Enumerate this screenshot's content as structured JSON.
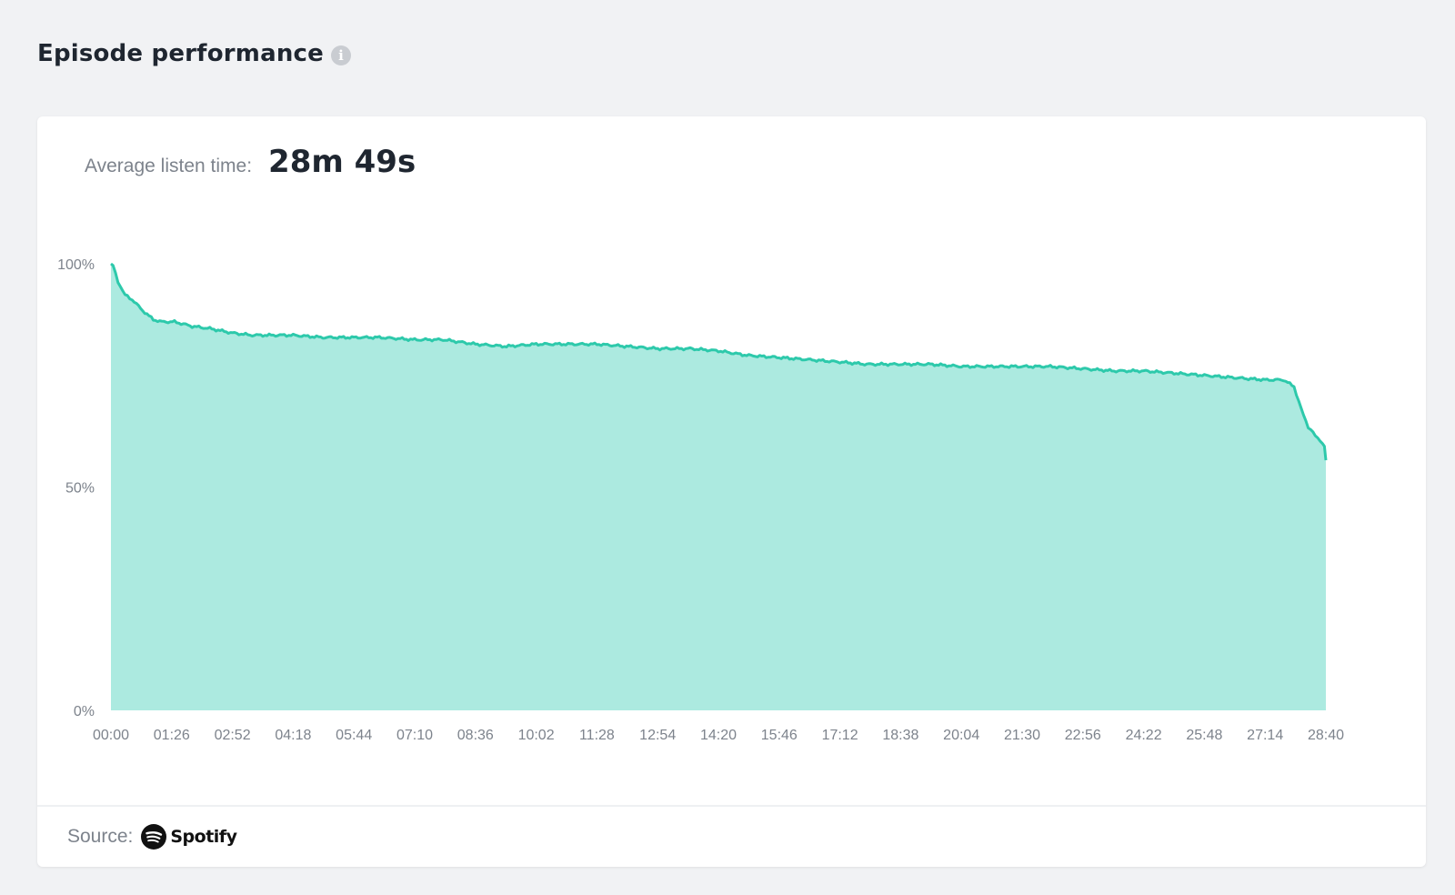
{
  "header": {
    "title": "Episode performance",
    "info_icon": "info-icon"
  },
  "metric": {
    "label": "Average listen time:",
    "value": "28m 49s"
  },
  "footer": {
    "source_label": "Source:",
    "source_logo_text": "Spotify",
    "source_icon": "spotify-icon"
  },
  "colors": {
    "line": "#2dc9ab",
    "area": "#aceae0",
    "background": "#f1f2f4",
    "card": "#ffffff"
  },
  "chart_data": {
    "type": "area",
    "title": "",
    "xlabel": "",
    "ylabel": "",
    "y_ticks": [
      "100%",
      "50%",
      "0%"
    ],
    "y_tick_values": [
      100,
      50,
      0
    ],
    "ylim": [
      0,
      100
    ],
    "x_ticks": [
      "00:00",
      "01:26",
      "02:52",
      "04:18",
      "05:44",
      "07:10",
      "08:36",
      "10:02",
      "11:28",
      "12:54",
      "14:20",
      "15:46",
      "17:12",
      "18:38",
      "20:04",
      "21:30",
      "22:56",
      "24:22",
      "25:48",
      "27:14",
      "28:40"
    ],
    "x_tick_values": [
      0,
      86,
      172,
      258,
      344,
      430,
      516,
      602,
      688,
      774,
      860,
      946,
      1032,
      1118,
      1204,
      1290,
      1376,
      1462,
      1548,
      1634,
      1720
    ],
    "xlim": [
      0,
      1720
    ],
    "grid": false,
    "legend": "none",
    "x": [
      0,
      3,
      10,
      20,
      30,
      45,
      60,
      72,
      90,
      115,
      140,
      172,
      200,
      230,
      258,
      300,
      344,
      380,
      430,
      470,
      516,
      560,
      602,
      650,
      688,
      730,
      774,
      820,
      860,
      900,
      946,
      990,
      1032,
      1070,
      1118,
      1160,
      1204,
      1250,
      1290,
      1330,
      1376,
      1420,
      1462,
      1505,
      1548,
      1590,
      1634,
      1660,
      1675,
      1685,
      1695,
      1705,
      1712,
      1718,
      1720
    ],
    "y": [
      100,
      99.5,
      96,
      93,
      92,
      89.5,
      87.5,
      87,
      87,
      86,
      85.5,
      84.5,
      84,
      84,
      84,
      83.5,
      83.5,
      83.5,
      83,
      83,
      82,
      81.5,
      82,
      82,
      82,
      81.5,
      81,
      81,
      80.5,
      79.5,
      79,
      78.5,
      78,
      77.5,
      77.5,
      77.5,
      77,
      77,
      77,
      77,
      76.5,
      76,
      76,
      75.5,
      75,
      74.5,
      74,
      74,
      72.5,
      67.5,
      63.5,
      61.5,
      60.5,
      59,
      56
    ]
  }
}
